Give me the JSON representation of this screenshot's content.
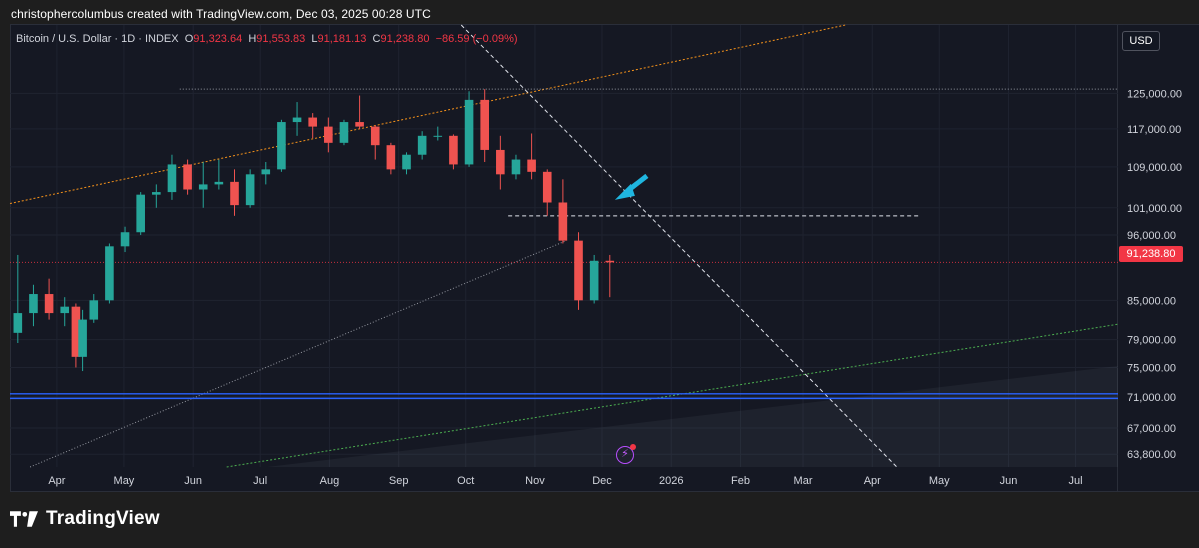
{
  "attribution": "christophercolumbus created with TradingView.com, Dec 03, 2025 00:28 UTC",
  "legend": {
    "symbol": "Bitcoin / U.S. Dollar · 1D · INDEX",
    "o_label": "O",
    "o_value": "91,323.64",
    "h_label": "H",
    "h_value": "91,553.83",
    "l_label": "L",
    "l_value": "91,181.13",
    "c_label": "C",
    "c_value": "91,238.80",
    "change": "−86.59 (−0.09%)"
  },
  "currency": "USD",
  "last_price_label": "91,238.80",
  "brand": "TradingView",
  "colors": {
    "up": "#26a69a",
    "down": "#ef5350",
    "orange": "#f7931a",
    "support_blue": "#2962ff",
    "green_trend": "#4caf50",
    "cyan_arrow": "#1fb6e0",
    "last_price": "#f23645"
  },
  "chart_data": {
    "type": "candlestick",
    "title": "Bitcoin / U.S. Dollar · 1D · INDEX",
    "y_ticks": [
      "125,000.00",
      "117,000.00",
      "109,000.00",
      "101,000.00",
      "96,000.00",
      "85,000.00",
      "79,000.00",
      "75,000.00",
      "71,000.00",
      "67,000.00",
      "63,800.00"
    ],
    "y_tick_values": [
      125000,
      117000,
      109000,
      101000,
      96000,
      85000,
      79000,
      75000,
      71000,
      67000,
      63800
    ],
    "y_scale": "log",
    "x_ticks": [
      "Apr",
      "May",
      "Jun",
      "Jul",
      "Aug",
      "Sep",
      "Oct",
      "Nov",
      "Dec",
      "2026",
      "Feb",
      "Mar",
      "Apr",
      "May",
      "Jun",
      "Jul"
    ],
    "x_tick_dates": [
      "2025-04-01",
      "2025-05-01",
      "2025-06-01",
      "2025-07-01",
      "2025-08-01",
      "2025-09-01",
      "2025-10-01",
      "2025-11-01",
      "2025-12-01",
      "2026-01-01",
      "2026-02-01",
      "2026-03-01",
      "2026-04-01",
      "2026-05-01",
      "2026-06-01",
      "2026-07-01"
    ],
    "x_range": [
      "2025-03-11",
      "2026-07-20"
    ],
    "y_range": [
      62300,
      142000
    ],
    "grid": true,
    "last_close": 91238.8,
    "candles": [
      [
        "2025-03-11",
        80000,
        92500,
        78500,
        83000
      ],
      [
        "2025-03-18",
        83000,
        87500,
        81000,
        86000
      ],
      [
        "2025-03-25",
        86000,
        88500,
        82000,
        83000
      ],
      [
        "2025-04-01",
        83000,
        85500,
        81000,
        84000
      ],
      [
        "2025-04-06",
        84000,
        84500,
        75000,
        76500
      ],
      [
        "2025-04-09",
        76500,
        83500,
        74500,
        82000
      ],
      [
        "2025-04-14",
        82000,
        86000,
        81500,
        85000
      ],
      [
        "2025-04-21",
        85000,
        94500,
        84500,
        94000
      ],
      [
        "2025-04-28",
        94000,
        97500,
        93000,
        96500
      ],
      [
        "2025-05-05",
        96500,
        104000,
        96000,
        103500
      ],
      [
        "2025-05-12",
        103500,
        105500,
        101000,
        104000
      ],
      [
        "2025-05-19",
        104000,
        111500,
        102500,
        109500
      ],
      [
        "2025-05-26",
        109500,
        110500,
        103500,
        104500
      ],
      [
        "2025-06-02",
        104500,
        110000,
        101000,
        105500
      ],
      [
        "2025-06-09",
        105500,
        110500,
        104500,
        106000
      ],
      [
        "2025-06-16",
        106000,
        108500,
        99500,
        101500
      ],
      [
        "2025-06-23",
        101500,
        108500,
        101000,
        107500
      ],
      [
        "2025-06-30",
        107500,
        110000,
        105500,
        108500
      ],
      [
        "2025-07-07",
        108500,
        119000,
        108000,
        118500
      ],
      [
        "2025-07-14",
        118500,
        123000,
        115500,
        119500
      ],
      [
        "2025-07-21",
        119500,
        120500,
        115000,
        117500
      ],
      [
        "2025-07-28",
        117500,
        119500,
        112000,
        114000
      ],
      [
        "2025-08-04",
        114000,
        119000,
        113500,
        118500
      ],
      [
        "2025-08-11",
        118500,
        124500,
        117000,
        117500
      ],
      [
        "2025-08-18",
        117500,
        117800,
        110500,
        113500
      ],
      [
        "2025-08-25",
        113500,
        114000,
        107500,
        108500
      ],
      [
        "2025-09-01",
        108500,
        112000,
        107500,
        111500
      ],
      [
        "2025-09-08",
        111500,
        116500,
        110500,
        115500
      ],
      [
        "2025-09-15",
        115500,
        117500,
        114500,
        115500
      ],
      [
        "2025-09-22",
        115500,
        115800,
        108500,
        109500
      ],
      [
        "2025-09-29",
        109500,
        125500,
        109000,
        123500
      ],
      [
        "2025-10-06",
        123500,
        126000,
        110000,
        112500
      ],
      [
        "2025-10-13",
        112500,
        115500,
        104500,
        107500
      ],
      [
        "2025-10-20",
        107500,
        111500,
        106500,
        110500
      ],
      [
        "2025-10-27",
        110500,
        116000,
        106500,
        108000
      ],
      [
        "2025-11-03",
        108000,
        108500,
        99500,
        102000
      ],
      [
        "2025-11-10",
        102000,
        106500,
        94500,
        95000
      ],
      [
        "2025-11-17",
        95000,
        96500,
        83500,
        85000
      ],
      [
        "2025-11-24",
        85000,
        92500,
        84500,
        91500
      ],
      [
        "2025-12-01",
        91500,
        92500,
        85500,
        91238.8
      ]
    ],
    "annotations": {
      "horizontal_dotted_top": 126000,
      "horizontal_dashed": 99500,
      "horizontal_support_band": [
        70800,
        71400
      ]
    }
  }
}
